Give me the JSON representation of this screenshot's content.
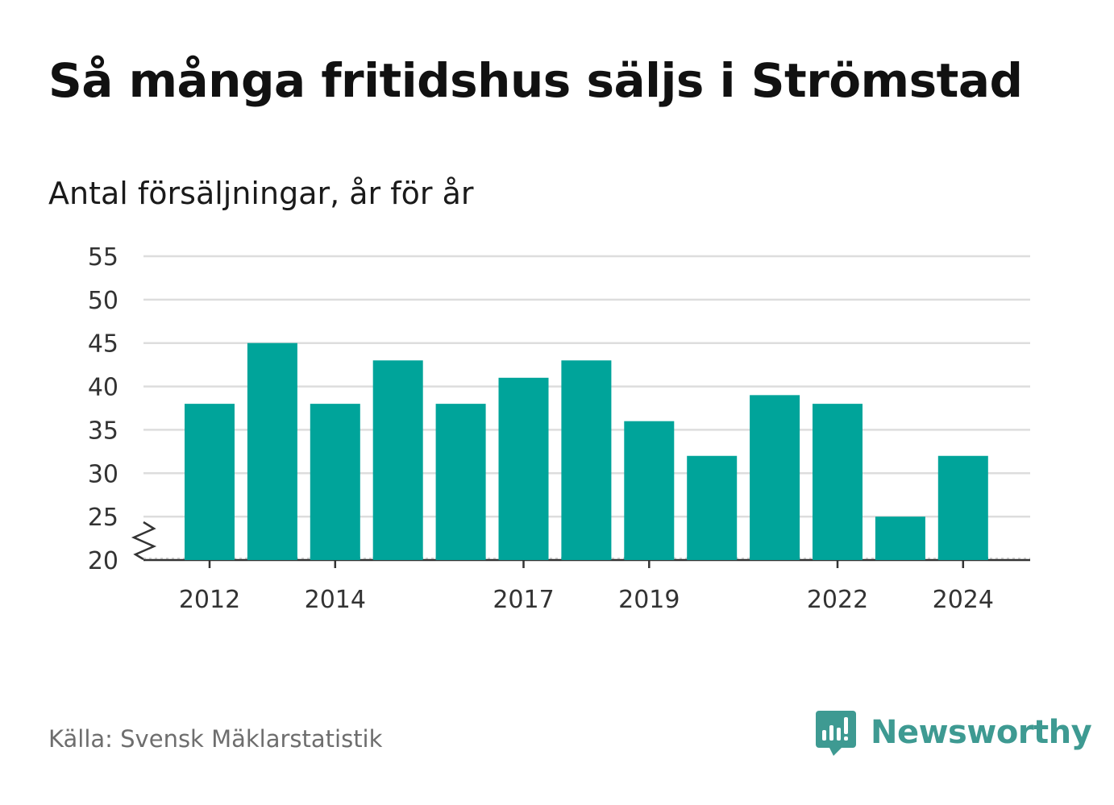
{
  "title": "Så många fritidshus säljs i Strömstad",
  "subtitle": "Antal försäljningar, år för år",
  "source": "Källa: Svensk Mäklarstatistik",
  "brand": {
    "name": "Newsworthy",
    "icon": "newsworthy-logo-icon",
    "color": "#3e9a92"
  },
  "chart_data": {
    "type": "bar",
    "categories": [
      "2012",
      "2013",
      "2014",
      "2015",
      "2016",
      "2017",
      "2018",
      "2019",
      "2020",
      "2021",
      "2022",
      "2023",
      "2024"
    ],
    "values": [
      38,
      45,
      38,
      43,
      38,
      41,
      43,
      36,
      32,
      39,
      38,
      25,
      32
    ],
    "x_tick_labels": [
      "2012",
      "2014",
      "2017",
      "2019",
      "2022",
      "2024"
    ],
    "y_ticks": [
      20,
      25,
      30,
      35,
      40,
      45,
      50,
      55
    ],
    "ylim": [
      20,
      55
    ],
    "y_axis_break": true,
    "grid": true,
    "bar_color": "#00a49a",
    "grid_color": "#dddddd",
    "axis_color": "#333333"
  }
}
